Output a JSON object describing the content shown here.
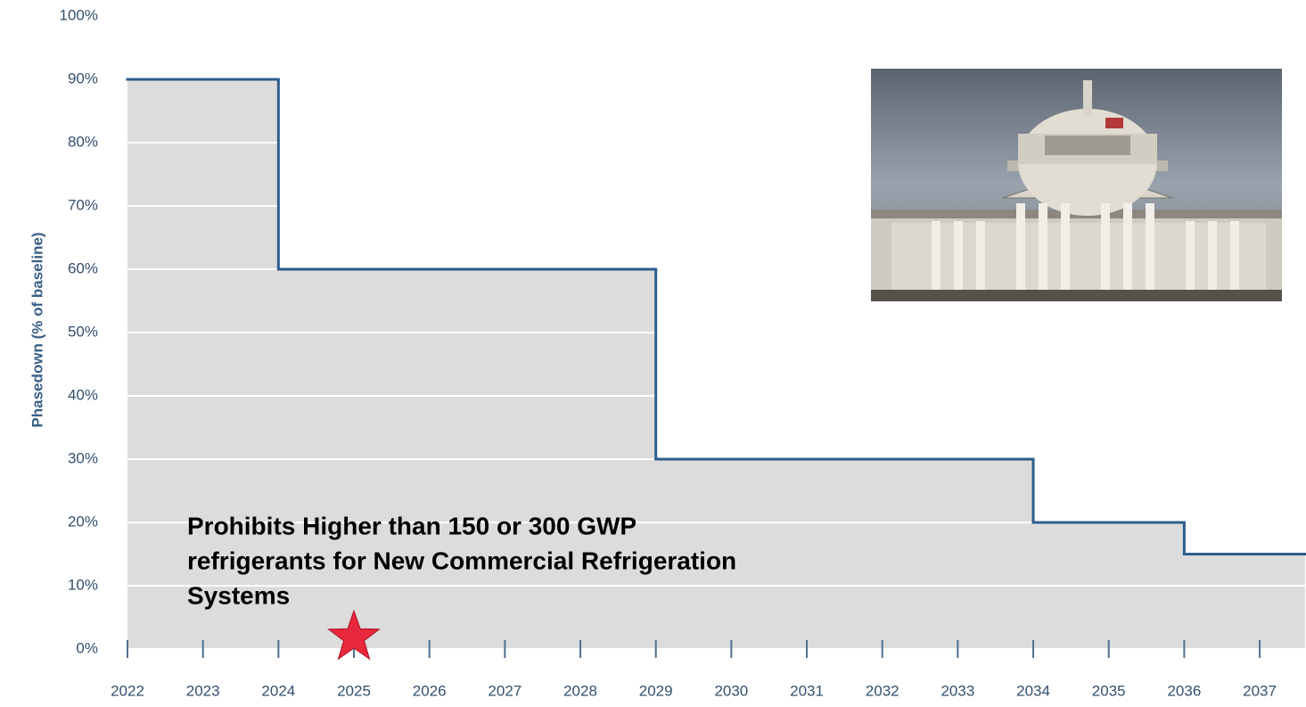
{
  "chart_data": {
    "type": "step-area",
    "ylabel": "Phasedown (% of baseline)",
    "x": [
      2022,
      2024,
      2029,
      2034,
      2036
    ],
    "values": [
      90,
      60,
      30,
      20,
      15
    ],
    "xlim": [
      2022,
      2037.6
    ],
    "ylim": [
      0,
      100
    ],
    "xticks": [
      2022,
      2023,
      2024,
      2025,
      2026,
      2027,
      2028,
      2029,
      2030,
      2031,
      2032,
      2033,
      2034,
      2035,
      2036,
      2037
    ],
    "yticks": [
      {
        "value": 0,
        "label": "0%"
      },
      {
        "value": 10,
        "label": "10%"
      },
      {
        "value": 20,
        "label": "20%"
      },
      {
        "value": 30,
        "label": "30%"
      },
      {
        "value": 40,
        "label": "40%"
      },
      {
        "value": 50,
        "label": "50%"
      },
      {
        "value": 60,
        "label": "60%"
      },
      {
        "value": 70,
        "label": "70%"
      },
      {
        "value": 80,
        "label": "80%"
      },
      {
        "value": 90,
        "label": "90%"
      },
      {
        "value": 100,
        "label": "100%"
      }
    ],
    "grid": true,
    "fill_color": "#dcdcdc",
    "line_color": "#2c5d8c",
    "annotation": [
      "Prohibits Higher than 150 or 300 GWP",
      "refrigerants for New Commercial Refrigeration",
      "Systems"
    ],
    "highlight_x": 2025,
    "highlight_color": "#e8283c"
  }
}
